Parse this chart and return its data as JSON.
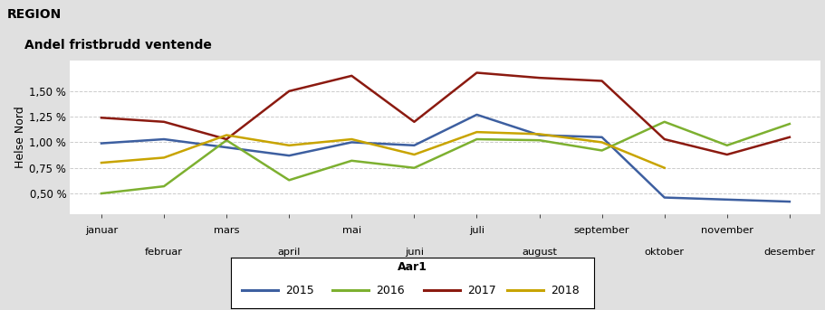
{
  "title_region": "REGION",
  "subtitle": "Andel fristbrudd ventende",
  "ylabel": "Helse Nord",
  "xlabel": "Aar1",
  "months": [
    "januar",
    "februar",
    "mars",
    "april",
    "mai",
    "juni",
    "juli",
    "august",
    "september",
    "oktober",
    "november",
    "desember"
  ],
  "series": {
    "2015": [
      0.0099,
      0.0103,
      0.0095,
      0.0087,
      0.01,
      0.0097,
      0.0127,
      0.0107,
      0.0105,
      0.0046,
      0.0044,
      0.0042
    ],
    "2016": [
      0.005,
      0.0057,
      0.0102,
      0.0063,
      0.0082,
      0.0075,
      0.0103,
      0.0102,
      0.0092,
      0.012,
      0.0097,
      0.0118
    ],
    "2017": [
      0.0124,
      0.012,
      0.0103,
      0.015,
      0.0165,
      0.012,
      0.0168,
      0.0163,
      0.016,
      0.0103,
      0.0088,
      0.0105
    ],
    "2018": [
      0.008,
      0.0085,
      0.0107,
      0.0097,
      0.0103,
      0.0088,
      0.011,
      0.0108,
      0.01,
      0.0075,
      null,
      null
    ]
  },
  "colors": {
    "2015": "#3d5fa0",
    "2016": "#7db030",
    "2017": "#8b1a10",
    "2018": "#c8a400"
  },
  "yticks": [
    0.005,
    0.0075,
    0.01,
    0.0125,
    0.015
  ],
  "ylim": [
    0.003,
    0.018
  ],
  "fig_bg": "#e0e0e0",
  "plot_bg": "#ffffff",
  "header_bg": "#d0d0d0",
  "header_bg2": "#c0c0c0",
  "grid_color": "#cccccc",
  "legend_years": [
    "2015",
    "2016",
    "2017",
    "2018"
  ]
}
